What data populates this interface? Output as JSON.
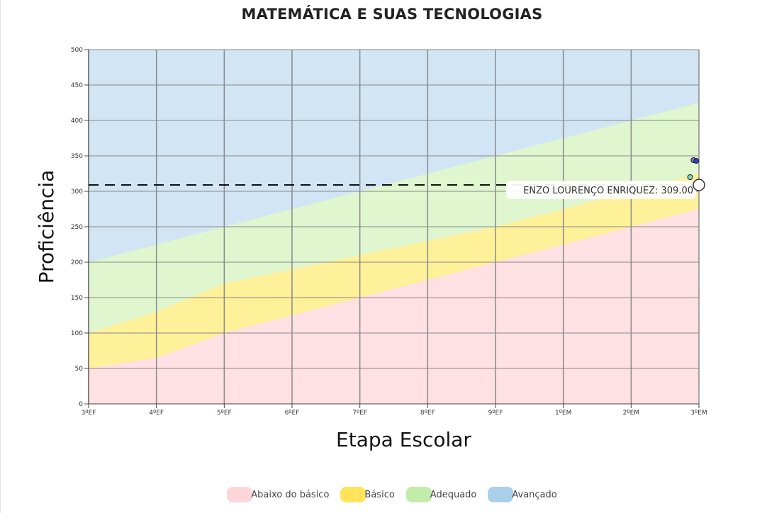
{
  "chart_data": {
    "type": "area",
    "title": "MATEMÁTICA E SUAS TECNOLOGIAS",
    "xlabel": "Etapa Escolar",
    "ylabel": "Proficiência",
    "categories": [
      "3ºEF",
      "4ºEF",
      "5ºEF",
      "6ºEF",
      "7ºEF",
      "8ºEF",
      "9ºEF",
      "1ºEM",
      "2ºEM",
      "3ºEM"
    ],
    "ylim": [
      0,
      500
    ],
    "yticks": [
      0,
      50,
      100,
      150,
      200,
      250,
      300,
      350,
      400,
      450,
      500
    ],
    "grid": true,
    "legend_position": "bottom",
    "series": [
      {
        "name": "Abaixo do básico",
        "color": "#ffe0e3",
        "values": [
          50,
          65,
          100,
          125,
          150,
          175,
          200,
          225,
          250,
          275
        ]
      },
      {
        "name": "Básico",
        "color": "#fff09a",
        "values": [
          100,
          130,
          170,
          190,
          210,
          230,
          250,
          275,
          300,
          325
        ]
      },
      {
        "name": "Adequado",
        "color": "#dff6cf",
        "values": [
          200,
          225,
          250,
          275,
          300,
          325,
          350,
          375,
          400,
          425
        ]
      },
      {
        "name": "Avançado",
        "color": "#d1e5f4",
        "values": [
          500,
          500,
          500,
          500,
          500,
          500,
          500,
          500,
          500,
          500
        ]
      }
    ],
    "reference_line": {
      "value": 309.0
    },
    "points": [
      {
        "x": 8.87,
        "y": 320,
        "color": "#7fd3c8"
      },
      {
        "x": 8.92,
        "y": 344,
        "color": "#9a6fc9"
      },
      {
        "x": 8.96,
        "y": 343,
        "color": "#2e44c9"
      }
    ],
    "highlight": {
      "label": "ENZO LOURENÇO ENRIQUEZ: 309.00",
      "x": 9,
      "y": 309.0
    }
  },
  "legend": [
    {
      "label": "Abaixo do básico",
      "color": "#ffd6da"
    },
    {
      "label": "Básico",
      "color": "#ffe45c"
    },
    {
      "label": "Adequado",
      "color": "#c2ecaa"
    },
    {
      "label": "Avançado",
      "color": "#a9cfea"
    }
  ]
}
